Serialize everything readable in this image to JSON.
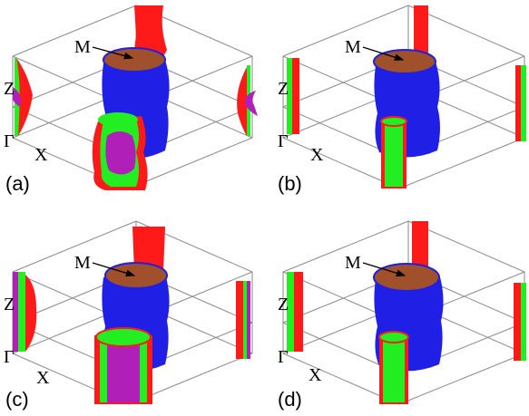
{
  "figure": {
    "panels": [
      {
        "id": "a",
        "label": "(a)",
        "point_labels": {
          "m": "M",
          "z": "Z",
          "gamma": "Γ",
          "x": "X"
        }
      },
      {
        "id": "b",
        "label": "(b)",
        "point_labels": {
          "m": "M",
          "z": "Z",
          "gamma": "Γ",
          "x": "X"
        }
      },
      {
        "id": "c",
        "label": "(c)",
        "point_labels": {
          "m": "M",
          "z": "Z",
          "gamma": "Γ",
          "x": "X"
        }
      },
      {
        "id": "d",
        "label": "(d)",
        "point_labels": {
          "m": "M",
          "z": "Z",
          "gamma": "Γ",
          "x": "X"
        }
      }
    ],
    "colors": {
      "red": "#ff1a1a",
      "green": "#22ee22",
      "blue": "#1f1fe6",
      "brown": "#a0502a",
      "magenta": "#b020b8",
      "frame": "#8a8a8a"
    }
  }
}
